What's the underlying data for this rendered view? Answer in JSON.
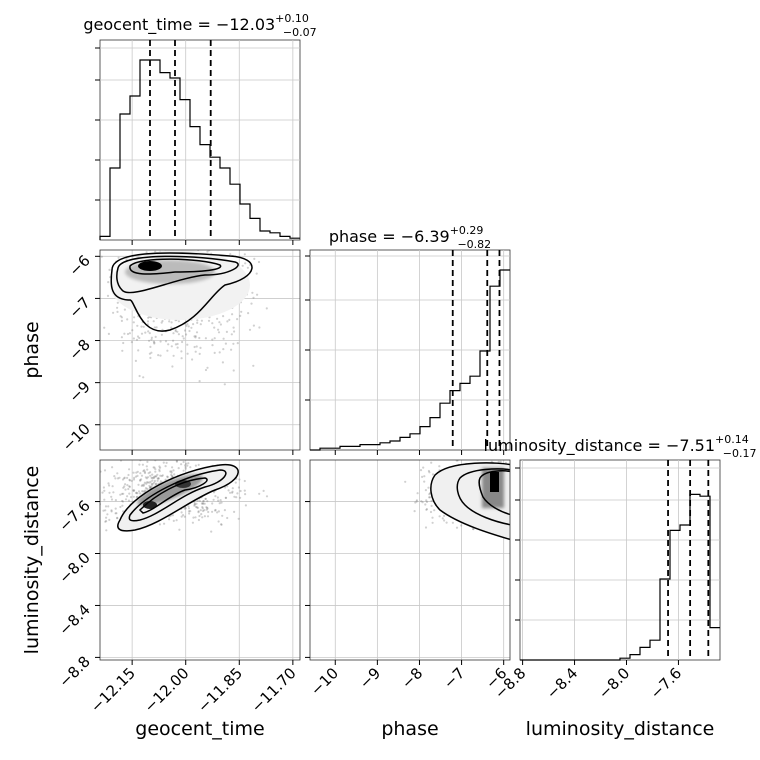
{
  "chart_data": {
    "type": "corner",
    "parameters": [
      "geocent_time",
      "phase",
      "luminosity_distance"
    ],
    "ranges": {
      "geocent_time": [
        -12.24,
        -11.68
      ],
      "phase": [
        -10.6,
        -5.85
      ],
      "luminosity_distance": [
        -8.82,
        -7.28
      ]
    },
    "ticks": {
      "geocent_time": {
        "values": [
          -12.15,
          -12.0,
          -11.85,
          -11.7
        ],
        "labels": [
          "−12.15",
          "−12.00",
          "−11.85",
          "−11.70"
        ]
      },
      "phase_x": {
        "values": [
          -10,
          -9,
          -8,
          -7,
          -6
        ],
        "labels": [
          "−10",
          "−9",
          "−8",
          "−7",
          "−6"
        ]
      },
      "phase_y": {
        "values": [
          -6,
          -7,
          -8,
          -9,
          -10
        ],
        "labels": [
          "−6",
          "−7",
          "−8",
          "−9",
          "−10"
        ]
      },
      "luminosity_distance_y": {
        "values": [
          -7.6,
          -8.0,
          -8.4,
          -8.8
        ],
        "labels": [
          "−7.6",
          "−8.0",
          "−8.4",
          "−8.8"
        ]
      },
      "luminosity_distance_x": {
        "values": [
          -8.8,
          -8.4,
          -8.0,
          -7.6
        ],
        "labels": [
          "−8.8",
          "−8.4",
          "−8.0",
          "−7.6"
        ]
      }
    },
    "axis_labels": {
      "geocent_time": "geocent_time",
      "phase": "phase",
      "luminosity_distance": "luminosity_distance"
    },
    "titles": [
      {
        "param": "geocent_time",
        "prefix": "geocent_time = −12.03",
        "plus": "+0.10",
        "minus": "−0.07"
      },
      {
        "param": "phase",
        "prefix": "phase = −6.39",
        "plus": "+0.29",
        "minus": "−0.82"
      },
      {
        "param": "luminosity_distance",
        "prefix": "luminosity_distance = −7.51",
        "plus": "+0.14",
        "minus": "−0.17"
      }
    ],
    "quantiles": {
      "geocent_time": [
        -12.1,
        -12.03,
        -11.93
      ],
      "phase": [
        -7.21,
        -6.39,
        -6.1
      ],
      "luminosity_distance": [
        -7.68,
        -7.51,
        -7.37
      ]
    },
    "histograms": {
      "geocent_time": {
        "edges": [
          -12.24,
          -12.212,
          -12.184,
          -12.156,
          -12.128,
          -12.1,
          -12.072,
          -12.044,
          -12.016,
          -11.988,
          -11.96,
          -11.932,
          -11.904,
          -11.876,
          -11.848,
          -11.82,
          -11.792,
          -11.764,
          -11.736,
          -11.708,
          -11.68
        ],
        "counts": [
          0.02,
          0.4,
          0.7,
          0.8,
          1.0,
          1.0,
          0.93,
          0.9,
          0.78,
          0.63,
          0.53,
          0.46,
          0.4,
          0.31,
          0.2,
          0.12,
          0.05,
          0.04,
          0.02,
          0.01
        ]
      },
      "phase": {
        "edges": [
          -10.6,
          -10.3625,
          -10.125,
          -9.8875,
          -9.65,
          -9.4125,
          -9.175,
          -8.9375,
          -8.7,
          -8.4625,
          -8.225,
          -7.9875,
          -7.75,
          -7.5125,
          -7.275,
          -7.0375,
          -6.8,
          -6.5625,
          -6.325,
          -6.0875,
          -5.85
        ],
        "counts": [
          0.0,
          0.01,
          0.01,
          0.02,
          0.02,
          0.03,
          0.03,
          0.04,
          0.05,
          0.07,
          0.09,
          0.13,
          0.18,
          0.26,
          0.33,
          0.37,
          0.41,
          0.55,
          0.91,
          1.0
        ]
      },
      "luminosity_distance": {
        "edges": [
          -8.82,
          -8.743,
          -8.666,
          -8.589,
          -8.512,
          -8.435,
          -8.358,
          -8.281,
          -8.204,
          -8.127,
          -8.05,
          -7.973,
          -7.896,
          -7.819,
          -7.742,
          -7.665,
          -7.588,
          -7.511,
          -7.434,
          -7.357,
          -7.28
        ],
        "counts": [
          0.0,
          0.0,
          0.0,
          0.0,
          0.0,
          0.0,
          0.0,
          0.0,
          0.0,
          0.0,
          0.01,
          0.03,
          0.07,
          0.11,
          0.45,
          0.72,
          0.75,
          0.92,
          0.91,
          0.18
        ]
      }
    },
    "sample_clouds": {
      "phase_vs_geocent_time": {
        "center": [
          -12.02,
          -6.8
        ],
        "spread": [
          0.1,
          0.9
        ]
      },
      "luminosity_distance_vs_geocent_time": {
        "center": [
          -12.05,
          -7.52
        ],
        "spread": [
          0.1,
          0.12
        ]
      },
      "luminosity_distance_vs_phase": {
        "center": [
          -6.5,
          -7.52
        ],
        "spread": [
          0.7,
          0.13
        ]
      }
    },
    "grid": true,
    "legend": "none"
  }
}
